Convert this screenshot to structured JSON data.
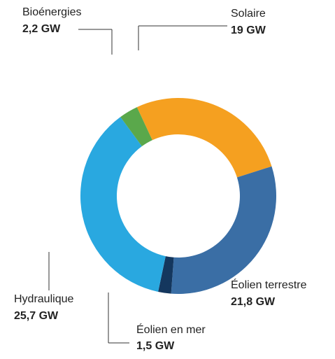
{
  "chart_data": {
    "type": "donut",
    "categories": [
      "Solaire",
      "Éolien terrestre",
      "Éolien en mer",
      "Hydraulique",
      "Bioénergies"
    ],
    "values": [
      19,
      21.8,
      1.5,
      25.7,
      2.2
    ],
    "value_labels": [
      "19 GW",
      "21,8 GW",
      "1,5 GW",
      "25,7 GW",
      "2,2 GW"
    ],
    "colors": [
      "#f5a020",
      "#3a6ea5",
      "#14375e",
      "#29a8e0",
      "#5aa84b"
    ]
  }
}
